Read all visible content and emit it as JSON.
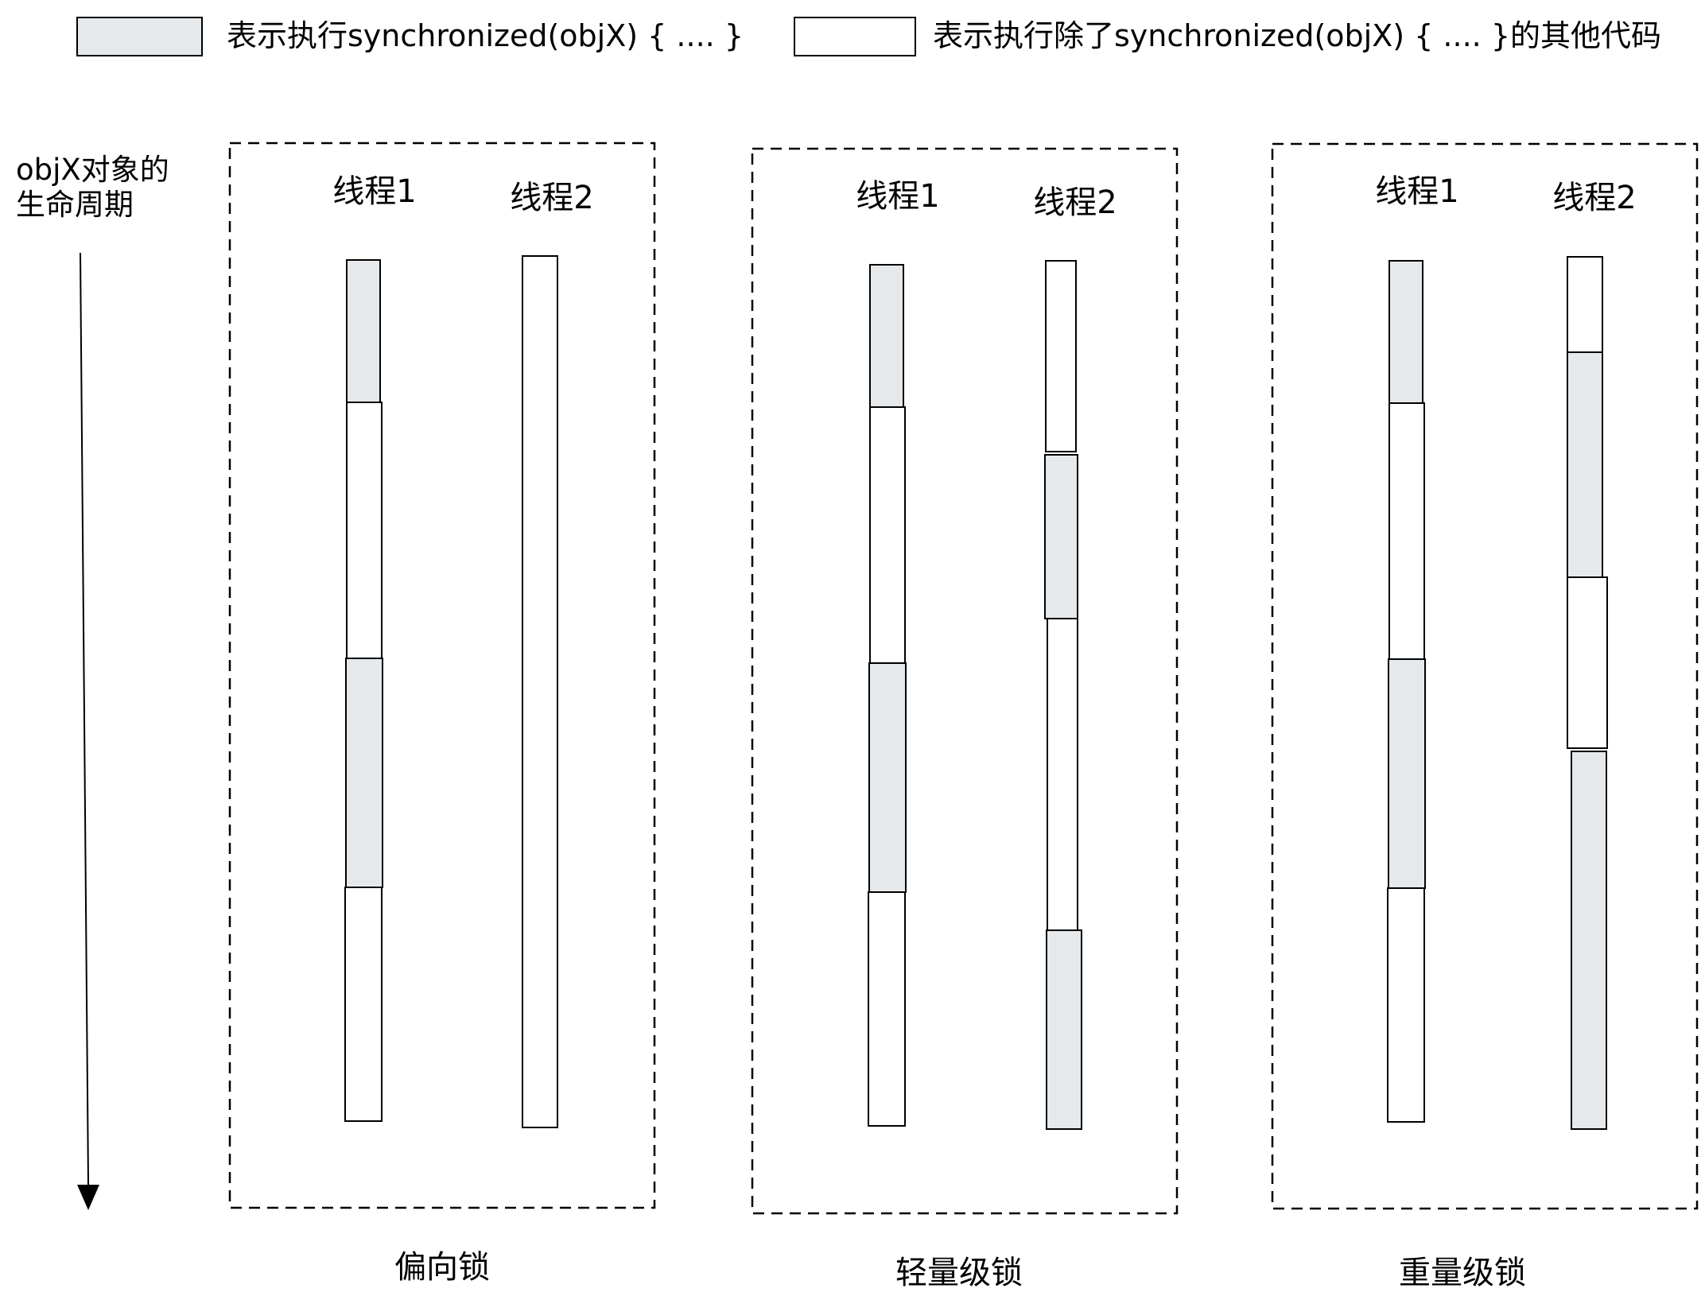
{
  "legend": {
    "sync": {
      "label": "表示执行synchronized(objX) { .... }",
      "color": "#e6e9ec"
    },
    "other": {
      "label": "表示执行除了synchronized(objX) { .... }的其他代码",
      "color": "#ffffff"
    }
  },
  "axis": {
    "label_line1": "objX对象的",
    "label_line2": "生命周期"
  },
  "panels": [
    {
      "title": "偏向锁",
      "threads": [
        {
          "label": "线程1",
          "segments": [
            "sync",
            "other",
            "sync",
            "other"
          ]
        },
        {
          "label": "线程2",
          "segments": [
            "other"
          ]
        }
      ]
    },
    {
      "title": "轻量级锁",
      "threads": [
        {
          "label": "线程1",
          "segments": [
            "sync",
            "other",
            "sync",
            "other"
          ]
        },
        {
          "label": "线程2",
          "segments": [
            "other",
            "sync",
            "other",
            "sync"
          ]
        }
      ]
    },
    {
      "title": "重量级锁",
      "threads": [
        {
          "label": "线程1",
          "segments": [
            "sync",
            "other",
            "sync",
            "other"
          ]
        },
        {
          "label": "线程2",
          "segments": [
            "other",
            "sync",
            "other",
            "sync"
          ]
        }
      ]
    }
  ]
}
